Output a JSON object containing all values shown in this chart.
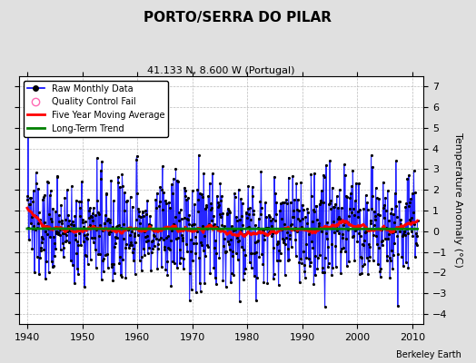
{
  "title": "PORTO/SERRA DO PILAR",
  "subtitle": "41.133 N, 8.600 W (Portugal)",
  "ylabel": "Temperature Anomaly (°C)",
  "attribution": "Berkeley Earth",
  "xlim": [
    1938.5,
    2012
  ],
  "ylim": [
    -4.5,
    7.5
  ],
  "yticks": [
    -4,
    -3,
    -2,
    -1,
    0,
    1,
    2,
    3,
    4,
    5,
    6,
    7
  ],
  "xticks": [
    1940,
    1950,
    1960,
    1970,
    1980,
    1990,
    2000,
    2010
  ],
  "bg_color": "#e0e0e0",
  "seed": 137
}
